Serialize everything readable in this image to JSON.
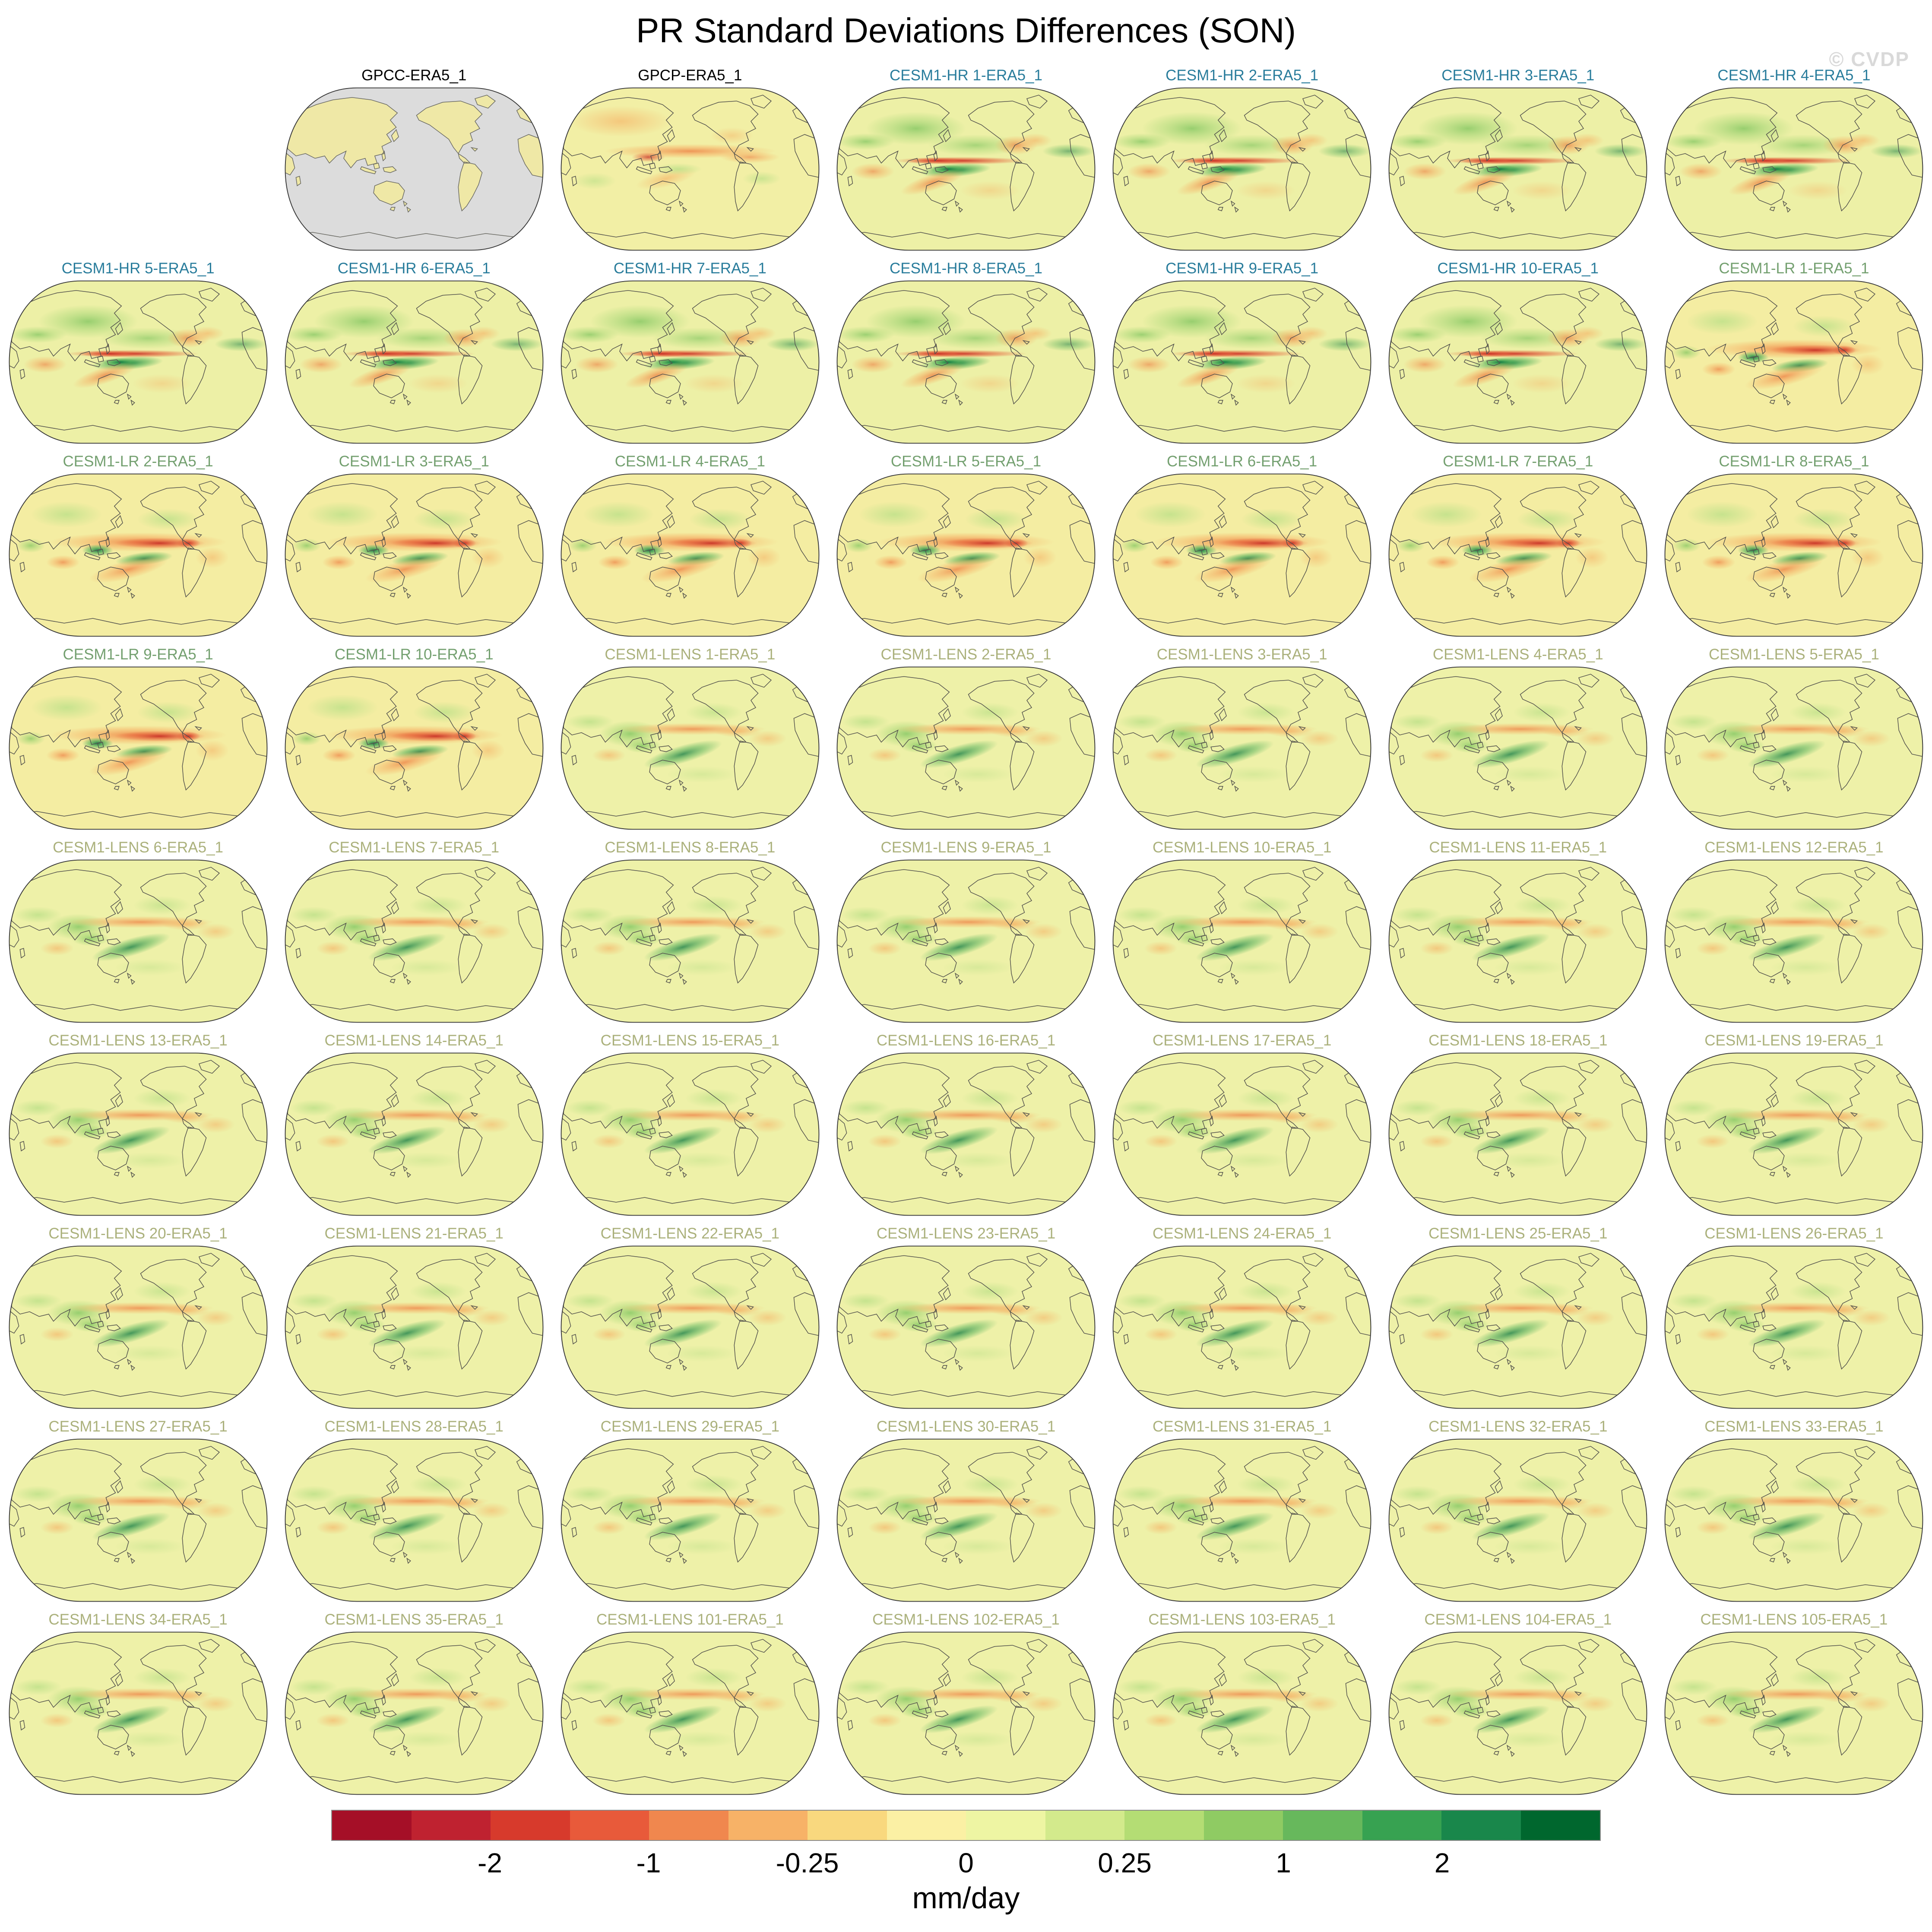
{
  "title": "PR Standard Deviations Differences (SON)",
  "watermark": "© CVDP",
  "colorbar": {
    "unit": "mm/day",
    "tick_labels": [
      "-2",
      "-1",
      "-0.25",
      "0",
      "0.25",
      "1",
      "2"
    ],
    "tick_values": [
      -2,
      -1,
      -0.25,
      0,
      0.25,
      1,
      2
    ],
    "tick_positions_pct": [
      12.5,
      25,
      37.5,
      50,
      62.5,
      75,
      87.5
    ],
    "segment_colors": [
      "#a50f27",
      "#bf2230",
      "#d73a2c",
      "#e85a3a",
      "#f0874e",
      "#f7b267",
      "#f9d87e",
      "#fbf0a4",
      "#eef5a3",
      "#d3ea8c",
      "#b4dd74",
      "#8fcb63",
      "#67b85c",
      "#37a251",
      "#19874b",
      "#00672e"
    ]
  },
  "families": {
    "gpcc": {
      "label_color": "#000000",
      "base": "#dcdcdc"
    },
    "gpcp": {
      "label_color": "#000000",
      "base": "#f2efa5"
    },
    "hr": {
      "label_color": "#2a7d9c",
      "base": "#edf0a6"
    },
    "lr": {
      "label_color": "#74a070",
      "base": "#f4eda2"
    },
    "lens": {
      "label_color": "#abb17c",
      "base": "#eef1a8"
    }
  },
  "map_rows": [
    {
      "cells": [
        null,
        {
          "label": "GPCC-ERA5_1",
          "family": "gpcc"
        },
        {
          "label": "GPCP-ERA5_1",
          "family": "gpcp"
        },
        {
          "label": "CESM1-HR 1-ERA5_1",
          "family": "hr"
        },
        {
          "label": "CESM1-HR 2-ERA5_1",
          "family": "hr"
        },
        {
          "label": "CESM1-HR 3-ERA5_1",
          "family": "hr"
        },
        {
          "label": "CESM1-HR 4-ERA5_1",
          "family": "hr"
        }
      ]
    },
    {
      "cells": [
        {
          "label": "CESM1-HR 5-ERA5_1",
          "family": "hr"
        },
        {
          "label": "CESM1-HR 6-ERA5_1",
          "family": "hr"
        },
        {
          "label": "CESM1-HR 7-ERA5_1",
          "family": "hr"
        },
        {
          "label": "CESM1-HR 8-ERA5_1",
          "family": "hr"
        },
        {
          "label": "CESM1-HR 9-ERA5_1",
          "family": "hr"
        },
        {
          "label": "CESM1-HR 10-ERA5_1",
          "family": "hr"
        },
        {
          "label": "CESM1-LR 1-ERA5_1",
          "family": "lr"
        }
      ]
    },
    {
      "cells": [
        {
          "label": "CESM1-LR 2-ERA5_1",
          "family": "lr"
        },
        {
          "label": "CESM1-LR 3-ERA5_1",
          "family": "lr"
        },
        {
          "label": "CESM1-LR 4-ERA5_1",
          "family": "lr"
        },
        {
          "label": "CESM1-LR 5-ERA5_1",
          "family": "lr"
        },
        {
          "label": "CESM1-LR 6-ERA5_1",
          "family": "lr"
        },
        {
          "label": "CESM1-LR 7-ERA5_1",
          "family": "lr"
        },
        {
          "label": "CESM1-LR 8-ERA5_1",
          "family": "lr"
        }
      ]
    },
    {
      "cells": [
        {
          "label": "CESM1-LR 9-ERA5_1",
          "family": "lr"
        },
        {
          "label": "CESM1-LR 10-ERA5_1",
          "family": "lr"
        },
        {
          "label": "CESM1-LENS 1-ERA5_1",
          "family": "lens"
        },
        {
          "label": "CESM1-LENS 2-ERA5_1",
          "family": "lens"
        },
        {
          "label": "CESM1-LENS 3-ERA5_1",
          "family": "lens"
        },
        {
          "label": "CESM1-LENS 4-ERA5_1",
          "family": "lens"
        },
        {
          "label": "CESM1-LENS 5-ERA5_1",
          "family": "lens"
        }
      ]
    },
    {
      "cells": [
        {
          "label": "CESM1-LENS 6-ERA5_1",
          "family": "lens"
        },
        {
          "label": "CESM1-LENS 7-ERA5_1",
          "family": "lens"
        },
        {
          "label": "CESM1-LENS 8-ERA5_1",
          "family": "lens"
        },
        {
          "label": "CESM1-LENS 9-ERA5_1",
          "family": "lens"
        },
        {
          "label": "CESM1-LENS 10-ERA5_1",
          "family": "lens"
        },
        {
          "label": "CESM1-LENS 11-ERA5_1",
          "family": "lens"
        },
        {
          "label": "CESM1-LENS 12-ERA5_1",
          "family": "lens"
        }
      ]
    },
    {
      "cells": [
        {
          "label": "CESM1-LENS 13-ERA5_1",
          "family": "lens"
        },
        {
          "label": "CESM1-LENS 14-ERA5_1",
          "family": "lens"
        },
        {
          "label": "CESM1-LENS 15-ERA5_1",
          "family": "lens"
        },
        {
          "label": "CESM1-LENS 16-ERA5_1",
          "family": "lens"
        },
        {
          "label": "CESM1-LENS 17-ERA5_1",
          "family": "lens"
        },
        {
          "label": "CESM1-LENS 18-ERA5_1",
          "family": "lens"
        },
        {
          "label": "CESM1-LENS 19-ERA5_1",
          "family": "lens"
        }
      ]
    },
    {
      "cells": [
        {
          "label": "CESM1-LENS 20-ERA5_1",
          "family": "lens"
        },
        {
          "label": "CESM1-LENS 21-ERA5_1",
          "family": "lens"
        },
        {
          "label": "CESM1-LENS 22-ERA5_1",
          "family": "lens"
        },
        {
          "label": "CESM1-LENS 23-ERA5_1",
          "family": "lens"
        },
        {
          "label": "CESM1-LENS 24-ERA5_1",
          "family": "lens"
        },
        {
          "label": "CESM1-LENS 25-ERA5_1",
          "family": "lens"
        },
        {
          "label": "CESM1-LENS 26-ERA5_1",
          "family": "lens"
        }
      ]
    },
    {
      "cells": [
        {
          "label": "CESM1-LENS 27-ERA5_1",
          "family": "lens"
        },
        {
          "label": "CESM1-LENS 28-ERA5_1",
          "family": "lens"
        },
        {
          "label": "CESM1-LENS 29-ERA5_1",
          "family": "lens"
        },
        {
          "label": "CESM1-LENS 30-ERA5_1",
          "family": "lens"
        },
        {
          "label": "CESM1-LENS 31-ERA5_1",
          "family": "lens"
        },
        {
          "label": "CESM1-LENS 32-ERA5_1",
          "family": "lens"
        },
        {
          "label": "CESM1-LENS 33-ERA5_1",
          "family": "lens"
        }
      ]
    },
    {
      "cells": [
        {
          "label": "CESM1-LENS 34-ERA5_1",
          "family": "lens"
        },
        {
          "label": "CESM1-LENS 35-ERA5_1",
          "family": "lens"
        },
        {
          "label": "CESM1-LENS 101-ERA5_1",
          "family": "lens"
        },
        {
          "label": "CESM1-LENS 102-ERA5_1",
          "family": "lens"
        },
        {
          "label": "CESM1-LENS 103-ERA5_1",
          "family": "lens"
        },
        {
          "label": "CESM1-LENS 104-ERA5_1",
          "family": "lens"
        },
        {
          "label": "CESM1-LENS 105-ERA5_1",
          "family": "lens"
        }
      ]
    }
  ],
  "chart_data": {
    "type": "heatmap",
    "title": "PR Standard Deviations Differences (SON)",
    "unit": "mm/day",
    "projection": "global world maps, Pacific-centered",
    "legend_position": "bottom",
    "colorbar_tick_labels": [
      "-2",
      "-1",
      "-0.25",
      "0",
      "0.25",
      "1",
      "2"
    ],
    "colorbar_tick_values": [
      -2,
      -1,
      -0.25,
      0,
      0.25,
      1,
      2
    ],
    "colorbar_segment_colors": [
      "#a50f27",
      "#bf2230",
      "#d73a2c",
      "#e85a3a",
      "#f0874e",
      "#f7b267",
      "#f9d87e",
      "#fbf0a4",
      "#eef5a3",
      "#d3ea8c",
      "#b4dd74",
      "#8fcb63",
      "#67b85c",
      "#37a251",
      "#19874b",
      "#00672e"
    ],
    "panel_labels": [
      "GPCC-ERA5_1",
      "GPCP-ERA5_1",
      "CESM1-HR 1-ERA5_1",
      "CESM1-HR 2-ERA5_1",
      "CESM1-HR 3-ERA5_1",
      "CESM1-HR 4-ERA5_1",
      "CESM1-HR 5-ERA5_1",
      "CESM1-HR 6-ERA5_1",
      "CESM1-HR 7-ERA5_1",
      "CESM1-HR 8-ERA5_1",
      "CESM1-HR 9-ERA5_1",
      "CESM1-HR 10-ERA5_1",
      "CESM1-LR 1-ERA5_1",
      "CESM1-LR 2-ERA5_1",
      "CESM1-LR 3-ERA5_1",
      "CESM1-LR 4-ERA5_1",
      "CESM1-LR 5-ERA5_1",
      "CESM1-LR 6-ERA5_1",
      "CESM1-LR 7-ERA5_1",
      "CESM1-LR 8-ERA5_1",
      "CESM1-LR 9-ERA5_1",
      "CESM1-LR 10-ERA5_1",
      "CESM1-LENS 1-ERA5_1",
      "CESM1-LENS 2-ERA5_1",
      "CESM1-LENS 3-ERA5_1",
      "CESM1-LENS 4-ERA5_1",
      "CESM1-LENS 5-ERA5_1",
      "CESM1-LENS 6-ERA5_1",
      "CESM1-LENS 7-ERA5_1",
      "CESM1-LENS 8-ERA5_1",
      "CESM1-LENS 9-ERA5_1",
      "CESM1-LENS 10-ERA5_1",
      "CESM1-LENS 11-ERA5_1",
      "CESM1-LENS 12-ERA5_1",
      "CESM1-LENS 13-ERA5_1",
      "CESM1-LENS 14-ERA5_1",
      "CESM1-LENS 15-ERA5_1",
      "CESM1-LENS 16-ERA5_1",
      "CESM1-LENS 17-ERA5_1",
      "CESM1-LENS 18-ERA5_1",
      "CESM1-LENS 19-ERA5_1",
      "CESM1-LENS 20-ERA5_1",
      "CESM1-LENS 21-ERA5_1",
      "CESM1-LENS 22-ERA5_1",
      "CESM1-LENS 23-ERA5_1",
      "CESM1-LENS 24-ERA5_1",
      "CESM1-LENS 25-ERA5_1",
      "CESM1-LENS 26-ERA5_1",
      "CESM1-LENS 27-ERA5_1",
      "CESM1-LENS 28-ERA5_1",
      "CESM1-LENS 29-ERA5_1",
      "CESM1-LENS 30-ERA5_1",
      "CESM1-LENS 31-ERA5_1",
      "CESM1-LENS 32-ERA5_1",
      "CESM1-LENS 33-ERA5_1",
      "CESM1-LENS 34-ERA5_1",
      "CESM1-LENS 35-ERA5_1",
      "CESM1-LENS 101-ERA5_1",
      "CESM1-LENS 102-ERA5_1",
      "CESM1-LENS 103-ERA5_1",
      "CESM1-LENS 104-ERA5_1",
      "CESM1-LENS 105-ERA5_1"
    ]
  }
}
